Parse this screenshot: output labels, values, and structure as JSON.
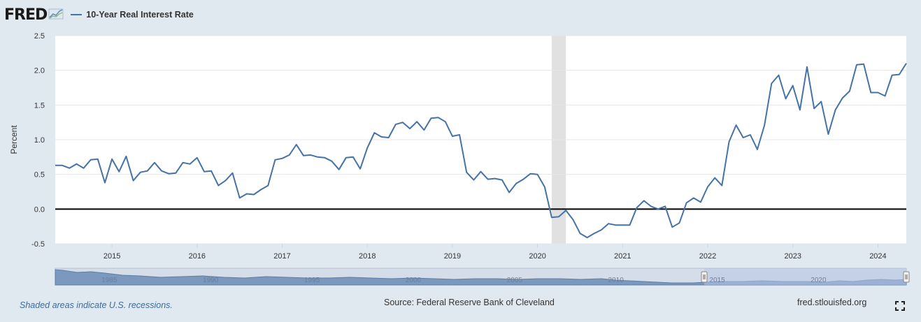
{
  "header": {
    "logo_text": "FRED",
    "logo_icon": "trend-line-icon",
    "series_label": "10-Year Real Interest Rate"
  },
  "footer": {
    "recession_note": "Shaded areas indicate U.S. recessions.",
    "source": "Source: Federal Reserve Bank of Cleveland",
    "site": "fred.stlouisfed.org",
    "fullscreen_icon": "expand-icon"
  },
  "colors": {
    "series_line": "#4572a7",
    "background": "#e1e9f0",
    "plot_background": "#ffffff",
    "recession_shade": "#e1e1e1",
    "zero_line": "#000000",
    "navigator_fill": "#7b98be",
    "navigator_window": "#b8c6e4"
  },
  "chart_data": {
    "type": "line",
    "ylabel": "Percent",
    "xlabel": "",
    "ylim": [
      -0.5,
      2.5
    ],
    "y_ticks": [
      "2.5",
      "2.0",
      "1.5",
      "1.0",
      "0.5",
      "0.0",
      "-0.5"
    ],
    "x_range": [
      "2014-05",
      "2024-05"
    ],
    "x_ticks": [
      "2015",
      "2016",
      "2017",
      "2018",
      "2019",
      "2020",
      "2021",
      "2022",
      "2023",
      "2024"
    ],
    "grid": "horizontal",
    "legend": "top-left",
    "zero_line": true,
    "recession": {
      "start": "2020-03",
      "end": "2020-04"
    },
    "navigator": {
      "labels": [
        "1985",
        "1990",
        "1995",
        "2000",
        "2005",
        "2010",
        "2015",
        "2020"
      ]
    },
    "series": [
      {
        "name": "10-Year Real Interest Rate",
        "start": "2014-05",
        "frequency": "monthly",
        "values": [
          0.63,
          0.63,
          0.59,
          0.65,
          0.59,
          0.71,
          0.72,
          0.38,
          0.72,
          0.54,
          0.76,
          0.41,
          0.53,
          0.55,
          0.67,
          0.55,
          0.51,
          0.52,
          0.67,
          0.65,
          0.74,
          0.54,
          0.55,
          0.34,
          0.41,
          0.52,
          0.16,
          0.22,
          0.21,
          0.28,
          0.34,
          0.71,
          0.73,
          0.78,
          0.93,
          0.77,
          0.78,
          0.75,
          0.74,
          0.69,
          0.57,
          0.74,
          0.75,
          0.58,
          0.88,
          1.1,
          1.04,
          1.03,
          1.22,
          1.25,
          1.16,
          1.26,
          1.14,
          1.31,
          1.32,
          1.26,
          1.05,
          1.07,
          0.53,
          0.42,
          0.54,
          0.43,
          0.44,
          0.42,
          0.24,
          0.37,
          0.43,
          0.51,
          0.5,
          0.32,
          -0.12,
          -0.11,
          -0.02,
          -0.15,
          -0.35,
          -0.41,
          -0.35,
          -0.3,
          -0.21,
          -0.23,
          -0.23,
          -0.23,
          0.02,
          0.12,
          0.04,
          0.0,
          0.04,
          -0.26,
          -0.2,
          0.09,
          0.16,
          0.1,
          0.32,
          0.45,
          0.34,
          0.97,
          1.21,
          1.03,
          1.07,
          0.86,
          1.21,
          1.81,
          1.93,
          1.59,
          1.78,
          1.43,
          2.05,
          1.45,
          1.55,
          1.08,
          1.43,
          1.6,
          1.7,
          2.08,
          2.09,
          1.68,
          1.68,
          1.63,
          1.93,
          1.94,
          2.1
        ]
      }
    ]
  }
}
